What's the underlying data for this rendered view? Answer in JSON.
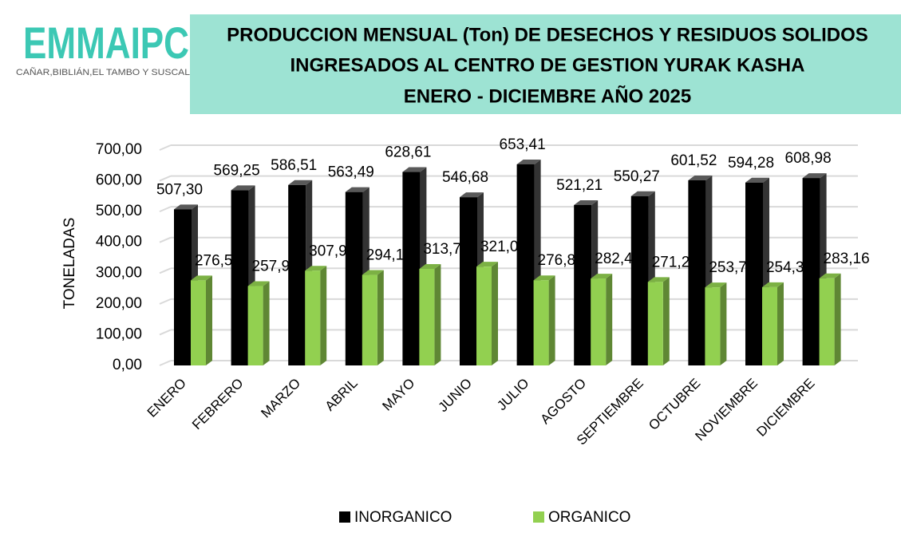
{
  "logo": {
    "name": "EMMAIPC",
    "tagline": "CAÑAR,BIBLIÁN,EL TAMBO Y SUSCAL"
  },
  "chart_data": {
    "type": "bar",
    "title": [
      "PRODUCCION MENSUAL (Ton)  DE DESECHOS Y RESIDUOS SOLIDOS",
      "INGRESADOS AL CENTRO DE GESTION YURAK KASHA",
      "ENERO - DICIEMBRE AÑO 2025"
    ],
    "y_label": "TONELADAS",
    "categories": [
      "ENERO",
      "FEBRERO",
      "MARZO",
      "ABRIL",
      "MAYO",
      "JUNIO",
      "JULIO",
      "AGOSTO",
      "SEPTIEMBRE",
      "OCTUBRE",
      "NOVIEMBRE",
      "DICIEMBRE"
    ],
    "series": [
      {
        "name": "INORGANICO",
        "color": "#000000",
        "values": [
          507.3,
          569.25,
          586.51,
          563.49,
          628.61,
          546.68,
          653.41,
          521.21,
          550.27,
          601.52,
          594.28,
          608.98
        ],
        "value_labels": [
          "507,30",
          "569,25",
          "586,51",
          "563,49",
          "628,61",
          "546,68",
          "653,41",
          "521,21",
          "550,27",
          "601,52",
          "594,28",
          "608,98"
        ]
      },
      {
        "name": "ORGANICO",
        "color": "#92d050",
        "values": [
          276.5,
          257.9,
          307.9,
          294.1,
          313.7,
          321.0,
          276.8,
          282.4,
          271.2,
          253.7,
          254.3,
          283.16
        ],
        "value_labels": [
          "276,50",
          "257,90",
          "307,90",
          "294,10",
          "313,70",
          "321,00",
          "276,80",
          "282,40",
          "271,20",
          "253,70",
          "254,30",
          "283,16"
        ]
      }
    ],
    "ylim": [
      0,
      700
    ],
    "yticks": [
      {
        "value": 0,
        "label": "0,00"
      },
      {
        "value": 100,
        "label": "100,00"
      },
      {
        "value": 200,
        "label": "200,00"
      },
      {
        "value": 300,
        "label": "300,00"
      },
      {
        "value": 400,
        "label": "400,00"
      },
      {
        "value": 500,
        "label": "500,00"
      },
      {
        "value": 600,
        "label": "600,00"
      },
      {
        "value": 700,
        "label": "700,00"
      }
    ],
    "grid": true,
    "legend": "bottom"
  }
}
